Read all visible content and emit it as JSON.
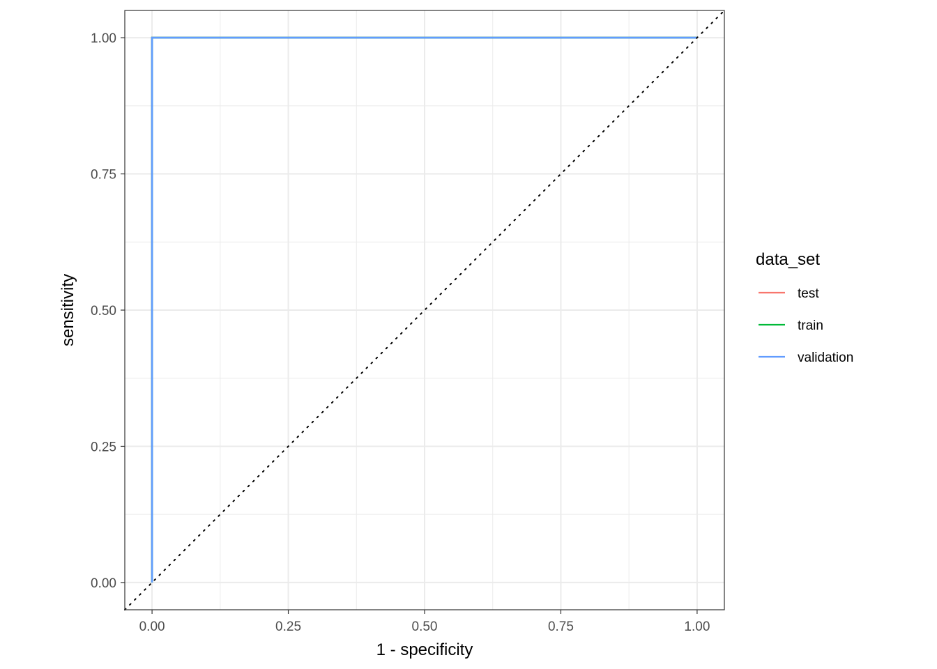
{
  "chart_data": {
    "type": "line",
    "title": "",
    "xlabel": "1 - specificity",
    "ylabel": "sensitivity",
    "xlim": [
      -0.05,
      1.05
    ],
    "ylim": [
      -0.05,
      1.05
    ],
    "x_ticks": [
      "0.00",
      "0.25",
      "0.50",
      "0.75",
      "1.00"
    ],
    "y_ticks": [
      "0.00",
      "0.25",
      "0.50",
      "0.75",
      "1.00"
    ],
    "grid": true,
    "legend": {
      "title": "data_set",
      "placement": "right",
      "entries": [
        {
          "label": "test",
          "color": "#F8766D"
        },
        {
          "label": "train",
          "color": "#00BA38"
        },
        {
          "label": "validation",
          "color": "#619CFF"
        }
      ]
    },
    "series": [
      {
        "name": "test",
        "color": "#F8766D",
        "x": [
          0,
          0,
          1
        ],
        "y": [
          0,
          1,
          1
        ]
      },
      {
        "name": "train",
        "color": "#00BA38",
        "x": [
          0,
          0,
          1
        ],
        "y": [
          0,
          1,
          1
        ]
      },
      {
        "name": "validation",
        "color": "#619CFF",
        "x": [
          0,
          0,
          1
        ],
        "y": [
          0,
          1,
          1
        ]
      }
    ],
    "reference_line": {
      "style": "dotted",
      "color": "#000000",
      "x": [
        -0.05,
        1.05
      ],
      "y": [
        -0.05,
        1.05
      ]
    }
  }
}
